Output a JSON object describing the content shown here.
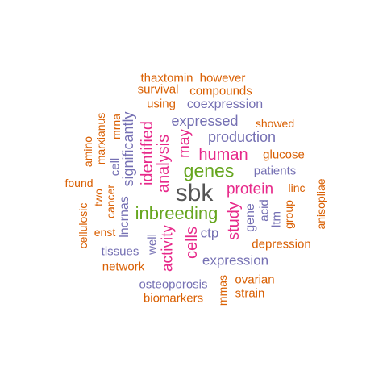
{
  "colors": {
    "orange": "#d95f02",
    "purple": "#7570b3",
    "magenta": "#e7298a",
    "green": "#66a61e",
    "gray": "#555555"
  },
  "words": [
    {
      "text": "thaxtomin",
      "color": "orange"
    },
    {
      "text": "however",
      "color": "orange"
    },
    {
      "text": "survival",
      "color": "orange"
    },
    {
      "text": "compounds",
      "color": "orange"
    },
    {
      "text": "using",
      "color": "orange"
    },
    {
      "text": "coexpression",
      "color": "purple"
    },
    {
      "text": "mrna",
      "color": "orange"
    },
    {
      "text": "expressed",
      "color": "purple"
    },
    {
      "text": "showed",
      "color": "orange"
    },
    {
      "text": "marxianus",
      "color": "orange"
    },
    {
      "text": "amino",
      "color": "orange"
    },
    {
      "text": "significantly",
      "color": "purple"
    },
    {
      "text": "cell",
      "color": "purple"
    },
    {
      "text": "identified",
      "color": "magenta"
    },
    {
      "text": "may",
      "color": "magenta"
    },
    {
      "text": "production",
      "color": "purple"
    },
    {
      "text": "analysis",
      "color": "magenta"
    },
    {
      "text": "human",
      "color": "magenta"
    },
    {
      "text": "glucose",
      "color": "orange"
    },
    {
      "text": "genes",
      "color": "green"
    },
    {
      "text": "patients",
      "color": "purple"
    },
    {
      "text": "found",
      "color": "orange"
    },
    {
      "text": "two",
      "color": "orange"
    },
    {
      "text": "cancer",
      "color": "orange"
    },
    {
      "text": "lncrnas",
      "color": "purple"
    },
    {
      "text": "sbk",
      "color": "gray"
    },
    {
      "text": "protein",
      "color": "magenta"
    },
    {
      "text": "linc",
      "color": "orange"
    },
    {
      "text": "anisopliae",
      "color": "orange"
    },
    {
      "text": "acid",
      "color": "purple"
    },
    {
      "text": "group",
      "color": "orange"
    },
    {
      "text": "gene",
      "color": "purple"
    },
    {
      "text": "ltm",
      "color": "purple"
    },
    {
      "text": "inbreeding",
      "color": "green"
    },
    {
      "text": "study",
      "color": "magenta"
    },
    {
      "text": "cellulosic",
      "color": "orange"
    },
    {
      "text": "enst",
      "color": "orange"
    },
    {
      "text": "ctp",
      "color": "purple"
    },
    {
      "text": "activity",
      "color": "magenta"
    },
    {
      "text": "well",
      "color": "purple"
    },
    {
      "text": "cells",
      "color": "magenta"
    },
    {
      "text": "depression",
      "color": "orange"
    },
    {
      "text": "tissues",
      "color": "purple"
    },
    {
      "text": "expression",
      "color": "purple"
    },
    {
      "text": "network",
      "color": "orange"
    },
    {
      "text": "ovarian",
      "color": "orange"
    },
    {
      "text": "osteoporosis",
      "color": "purple"
    },
    {
      "text": "mmas",
      "color": "orange"
    },
    {
      "text": "strain",
      "color": "orange"
    },
    {
      "text": "biomarkers",
      "color": "orange"
    }
  ]
}
